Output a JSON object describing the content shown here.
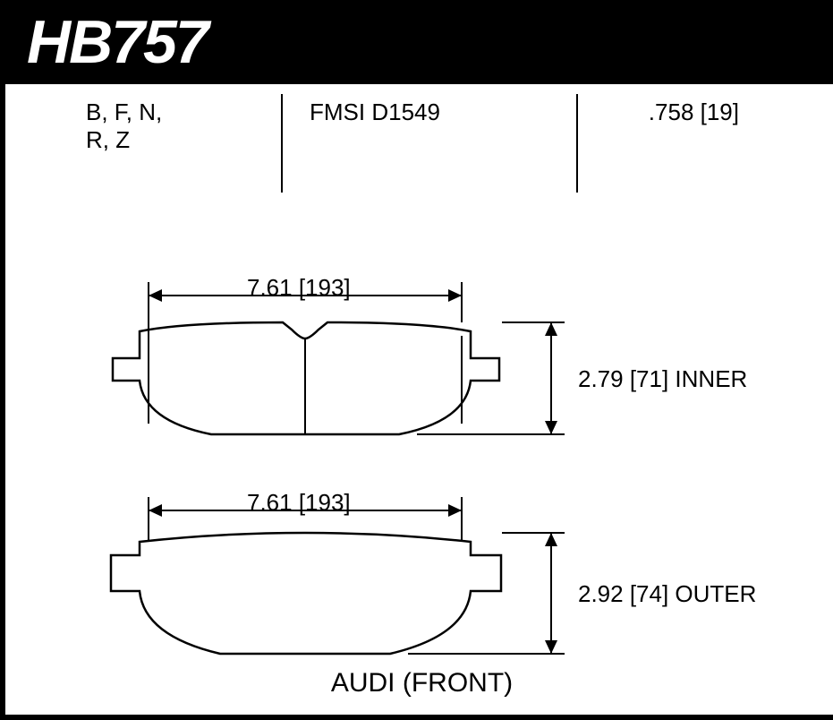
{
  "header": {
    "part_number": "HB757"
  },
  "info": {
    "compounds": "B, F, N, R, Z",
    "fmsi": "FMSI D1549",
    "thickness": ".758 [19]"
  },
  "pad_inner": {
    "width": "7.61 [193]",
    "height": "2.79 [71] INNER"
  },
  "pad_outer": {
    "width": "7.61 [193]",
    "height": "2.92 [74] OUTER"
  },
  "footer": "AUDI (FRONT)",
  "colors": {
    "bg": "#ffffff",
    "fg": "#000000"
  },
  "dims": {
    "arrow": 12,
    "line_w": 2
  }
}
